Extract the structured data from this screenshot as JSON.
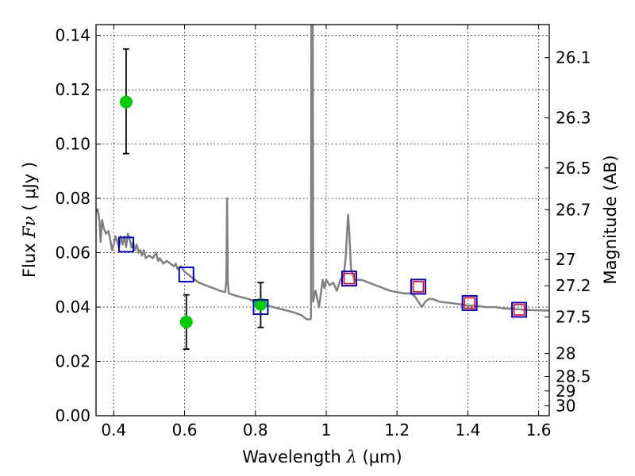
{
  "chart_data": {
    "type": "scatter",
    "title": "",
    "xlabel": {
      "prefix": "Wavelength  ",
      "symbol": "λ",
      "unit": " (μm)"
    },
    "ylabel": {
      "prefix": "Flux  ",
      "symbol": "Fν",
      "unit": "  ( μJy )"
    },
    "y2label": "Magnitude (AB)",
    "xlim": [
      0.35,
      1.63
    ],
    "ylim": [
      0.0,
      0.144
    ],
    "grid": true,
    "x_ticks": [
      {
        "value": 0.4,
        "label": "0.4"
      },
      {
        "value": 0.6,
        "label": "0.6"
      },
      {
        "value": 0.8,
        "label": "0.8"
      },
      {
        "value": 1.0,
        "label": "1"
      },
      {
        "value": 1.2,
        "label": "1.2"
      },
      {
        "value": 1.4,
        "label": "1.4"
      },
      {
        "value": 1.6,
        "label": "1.6"
      }
    ],
    "y_ticks": [
      {
        "value": 0.0,
        "label": "0.00"
      },
      {
        "value": 0.02,
        "label": "0.02"
      },
      {
        "value": 0.04,
        "label": "0.04"
      },
      {
        "value": 0.06,
        "label": "0.06"
      },
      {
        "value": 0.08,
        "label": "0.08"
      },
      {
        "value": 0.1,
        "label": "0.10"
      },
      {
        "value": 0.12,
        "label": "0.12"
      },
      {
        "value": 0.14,
        "label": "0.14"
      }
    ],
    "y2_ticks": [
      {
        "mag": 26.1,
        "label": "26.1"
      },
      {
        "mag": 26.3,
        "label": "26.3"
      },
      {
        "mag": 26.5,
        "label": "26.5"
      },
      {
        "mag": 26.7,
        "label": "26.7"
      },
      {
        "mag": 27.0,
        "label": "27"
      },
      {
        "mag": 27.2,
        "label": "27.2"
      },
      {
        "mag": 27.5,
        "label": "27.5"
      },
      {
        "mag": 28.0,
        "label": "28"
      },
      {
        "mag": 28.5,
        "label": "28.5"
      },
      {
        "mag": 29.0,
        "label": "29"
      },
      {
        "mag": 30.0,
        "label": "30"
      }
    ],
    "series": [
      {
        "kind": "line",
        "color": "#808080",
        "points": [
          [
            0.35,
            0.075
          ],
          [
            0.355,
            0.076
          ],
          [
            0.36,
            0.071
          ],
          [
            0.363,
            0.064
          ],
          [
            0.367,
            0.072
          ],
          [
            0.372,
            0.069
          ],
          [
            0.378,
            0.067
          ],
          [
            0.385,
            0.068
          ],
          [
            0.39,
            0.065
          ],
          [
            0.395,
            0.061
          ],
          [
            0.4,
            0.063
          ],
          [
            0.405,
            0.066
          ],
          [
            0.41,
            0.064
          ],
          [
            0.415,
            0.062
          ],
          [
            0.42,
            0.066
          ],
          [
            0.425,
            0.063
          ],
          [
            0.43,
            0.066
          ],
          [
            0.435,
            0.062
          ],
          [
            0.44,
            0.067
          ],
          [
            0.445,
            0.065
          ],
          [
            0.45,
            0.062
          ],
          [
            0.455,
            0.064
          ],
          [
            0.46,
            0.061
          ],
          [
            0.465,
            0.063
          ],
          [
            0.47,
            0.06
          ],
          [
            0.475,
            0.061
          ],
          [
            0.48,
            0.059
          ],
          [
            0.485,
            0.061
          ],
          [
            0.49,
            0.058
          ],
          [
            0.5,
            0.059
          ],
          [
            0.51,
            0.058
          ],
          [
            0.52,
            0.06
          ],
          [
            0.525,
            0.057
          ],
          [
            0.53,
            0.058
          ],
          [
            0.54,
            0.056
          ],
          [
            0.55,
            0.057
          ],
          [
            0.56,
            0.056
          ],
          [
            0.57,
            0.055
          ],
          [
            0.575,
            0.056
          ],
          [
            0.58,
            0.054
          ],
          [
            0.59,
            0.055
          ],
          [
            0.6,
            0.053
          ],
          [
            0.62,
            0.051
          ],
          [
            0.64,
            0.049
          ],
          [
            0.66,
            0.048
          ],
          [
            0.68,
            0.047
          ],
          [
            0.7,
            0.046
          ],
          [
            0.715,
            0.0455
          ],
          [
            0.718,
            0.05
          ],
          [
            0.72,
            0.08
          ],
          [
            0.722,
            0.05
          ],
          [
            0.725,
            0.045
          ],
          [
            0.75,
            0.044
          ],
          [
            0.78,
            0.043
          ],
          [
            0.8,
            0.042
          ],
          [
            0.82,
            0.041
          ],
          [
            0.85,
            0.04
          ],
          [
            0.88,
            0.039
          ],
          [
            0.91,
            0.038
          ],
          [
            0.93,
            0.037
          ],
          [
            0.945,
            0.0355
          ],
          [
            0.955,
            0.0355
          ],
          [
            0.957,
            0.036
          ],
          [
            0.958,
            0.144
          ],
          [
            0.962,
            0.144
          ],
          [
            0.963,
            0.042
          ],
          [
            0.97,
            0.046
          ],
          [
            0.975,
            0.043
          ],
          [
            0.98,
            0.04
          ],
          [
            0.985,
            0.045
          ],
          [
            0.99,
            0.05
          ],
          [
            0.995,
            0.047
          ],
          [
            1.0,
            0.05
          ],
          [
            1.01,
            0.048
          ],
          [
            1.02,
            0.049
          ],
          [
            1.03,
            0.046
          ],
          [
            1.04,
            0.05
          ],
          [
            1.05,
            0.052
          ],
          [
            1.055,
            0.058
          ],
          [
            1.06,
            0.07
          ],
          [
            1.062,
            0.074
          ],
          [
            1.065,
            0.068
          ],
          [
            1.07,
            0.054
          ],
          [
            1.08,
            0.05
          ],
          [
            1.1,
            0.05
          ],
          [
            1.12,
            0.049
          ],
          [
            1.14,
            0.048
          ],
          [
            1.16,
            0.047
          ],
          [
            1.18,
            0.046
          ],
          [
            1.2,
            0.0455
          ],
          [
            1.22,
            0.045
          ],
          [
            1.24,
            0.045
          ],
          [
            1.25,
            0.044
          ],
          [
            1.26,
            0.042
          ],
          [
            1.27,
            0.04
          ],
          [
            1.28,
            0.042
          ],
          [
            1.29,
            0.043
          ],
          [
            1.3,
            0.043
          ],
          [
            1.32,
            0.042
          ],
          [
            1.35,
            0.0415
          ],
          [
            1.38,
            0.041
          ],
          [
            1.4,
            0.0405
          ],
          [
            1.42,
            0.0405
          ],
          [
            1.45,
            0.04
          ],
          [
            1.48,
            0.04
          ],
          [
            1.5,
            0.0395
          ],
          [
            1.53,
            0.0393
          ],
          [
            1.56,
            0.039
          ],
          [
            1.6,
            0.0388
          ],
          [
            1.63,
            0.0387
          ]
        ]
      },
      {
        "kind": "points",
        "marker": "circle",
        "color": "#00cc00",
        "points": [
          {
            "x": 0.435,
            "y": 0.1155,
            "ylow": 0.0965,
            "yhigh": 0.135
          },
          {
            "x": 0.605,
            "y": 0.0345,
            "ylow": 0.0245,
            "yhigh": 0.0445
          },
          {
            "x": 0.815,
            "y": 0.041,
            "ylow": 0.0325,
            "yhigh": 0.049
          }
        ]
      },
      {
        "kind": "points",
        "marker": "square-open",
        "color": "#0000dd",
        "points": [
          {
            "x": 0.435,
            "y": 0.063
          },
          {
            "x": 0.605,
            "y": 0.052
          },
          {
            "x": 0.815,
            "y": 0.04
          },
          {
            "x": 1.065,
            "y": 0.0505
          },
          {
            "x": 1.26,
            "y": 0.0475
          },
          {
            "x": 1.405,
            "y": 0.0415
          },
          {
            "x": 1.545,
            "y": 0.039
          }
        ]
      },
      {
        "kind": "points",
        "marker": "square-open-small",
        "color": "#ee0000",
        "points": [
          {
            "x": 1.065,
            "y": 0.0505
          },
          {
            "x": 1.26,
            "y": 0.0475
          },
          {
            "x": 1.405,
            "y": 0.0415
          },
          {
            "x": 1.545,
            "y": 0.039
          }
        ]
      }
    ]
  }
}
